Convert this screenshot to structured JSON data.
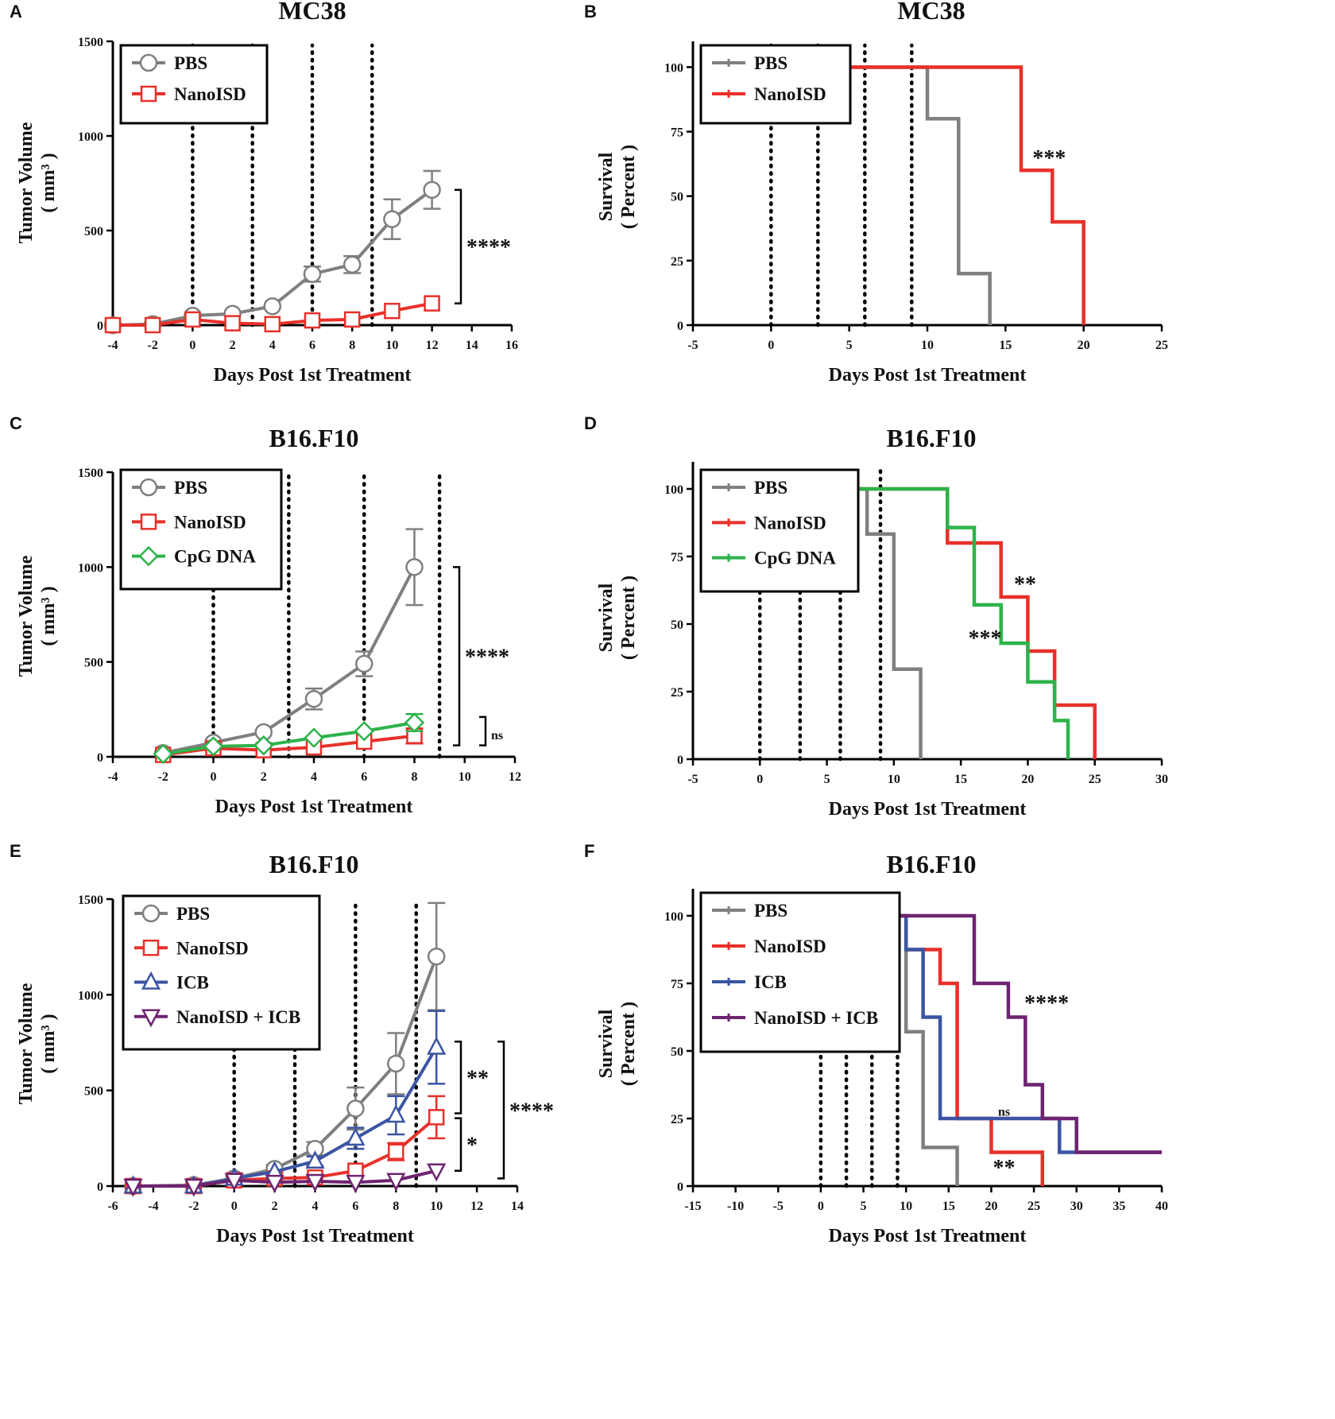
{
  "chart_data": [
    {
      "panel": "A",
      "type": "line",
      "title": "MC38",
      "xlabel": "Days Post 1st Treatment",
      "ylabel": "Tumor Volume",
      "ylabel_unit": "( mm³ )",
      "xlim": [
        -4,
        16
      ],
      "ylim": [
        0,
        1500
      ],
      "xticks": [
        -4,
        -2,
        0,
        2,
        4,
        6,
        8,
        10,
        12,
        14,
        16
      ],
      "yticks": [
        0,
        500,
        1000,
        1500
      ],
      "treatment_days": [
        0,
        3,
        6,
        9
      ],
      "series": [
        {
          "name": "PBS",
          "color": "#7f7f7f",
          "marker": "circle",
          "x": [
            -4,
            -2,
            0,
            2,
            4,
            6,
            8,
            10,
            12
          ],
          "y": [
            0,
            5,
            50,
            60,
            100,
            270,
            320,
            560,
            715
          ],
          "err": [
            0,
            0,
            0,
            0,
            0,
            40,
            45,
            105,
            100
          ]
        },
        {
          "name": "NanoISD",
          "color": "#e8302a",
          "marker": "square",
          "x": [
            -4,
            -2,
            0,
            2,
            4,
            6,
            8,
            10,
            12
          ],
          "y": [
            0,
            0,
            30,
            10,
            5,
            25,
            30,
            75,
            115
          ],
          "err": [
            0,
            0,
            0,
            0,
            0,
            0,
            0,
            0,
            0
          ]
        }
      ],
      "brackets": [
        {
          "from": 715,
          "to": 115,
          "label": "****"
        }
      ]
    },
    {
      "panel": "B",
      "type": "line",
      "step": true,
      "title": "MC38",
      "xlabel": "Days Post 1st Treatment",
      "ylabel": "Survival",
      "ylabel_unit": "( Percent )",
      "xlim": [
        -5,
        25
      ],
      "ylim": [
        0,
        110
      ],
      "xticks": [
        -5,
        0,
        5,
        10,
        15,
        20,
        25
      ],
      "yticks": [
        0,
        25,
        50,
        75,
        100
      ],
      "treatment_days": [
        0,
        3,
        6,
        9
      ],
      "series": [
        {
          "name": "PBS",
          "color": "#7f7f7f",
          "x": [
            5,
            10,
            12,
            14
          ],
          "y": [
            100,
            80,
            20,
            0
          ]
        },
        {
          "name": "NanoISD",
          "color": "#e8302a",
          "x": [
            5,
            16,
            18,
            20
          ],
          "y": [
            100,
            60,
            40,
            0
          ]
        }
      ],
      "annotations": [
        {
          "text": "***",
          "x": 17.8,
          "y": 65
        }
      ]
    },
    {
      "panel": "C",
      "type": "line",
      "title": "B16.F10",
      "xlabel": "Days Post 1st Treatment",
      "ylabel": "Tumor Volume",
      "ylabel_unit": "( mm³ )",
      "xlim": [
        -4,
        12
      ],
      "ylim": [
        0,
        1500
      ],
      "xticks": [
        -4,
        -2,
        0,
        2,
        4,
        6,
        8,
        10,
        12
      ],
      "yticks": [
        0,
        500,
        1000,
        1500
      ],
      "treatment_days": [
        0,
        3,
        6,
        9
      ],
      "series": [
        {
          "name": "PBS",
          "color": "#7f7f7f",
          "marker": "circle",
          "x": [
            -2,
            0,
            2,
            4,
            6,
            8
          ],
          "y": [
            20,
            75,
            130,
            305,
            490,
            1000
          ],
          "err": [
            0,
            0,
            0,
            55,
            65,
            200
          ]
        },
        {
          "name": "NanoISD",
          "color": "#e8302a",
          "marker": "square",
          "x": [
            -2,
            0,
            2,
            4,
            6,
            8
          ],
          "y": [
            10,
            45,
            35,
            50,
            80,
            110
          ],
          "err": [
            0,
            0,
            0,
            0,
            0,
            40
          ]
        },
        {
          "name": "CpG DNA",
          "color": "#2db34a",
          "marker": "diamond",
          "x": [
            -2,
            0,
            2,
            4,
            6,
            8
          ],
          "y": [
            15,
            55,
            60,
            100,
            135,
            180
          ],
          "err": [
            0,
            0,
            0,
            0,
            0,
            45
          ]
        }
      ],
      "brackets": [
        {
          "from": 1000,
          "to": 60,
          "label": "****"
        },
        {
          "from": 210,
          "to": 60,
          "label": "ns"
        }
      ]
    },
    {
      "panel": "D",
      "type": "line",
      "step": true,
      "title": "B16.F10",
      "xlabel": "Days Post 1st Treatment",
      "ylabel": "Survival",
      "ylabel_unit": "( Percent )",
      "xlim": [
        -5,
        30
      ],
      "ylim": [
        0,
        110
      ],
      "xticks": [
        -5,
        0,
        5,
        10,
        15,
        20,
        25,
        30
      ],
      "yticks": [
        0,
        25,
        50,
        75,
        100
      ],
      "treatment_days": [
        0,
        3,
        6,
        9
      ],
      "series": [
        {
          "name": "PBS",
          "color": "#7f7f7f",
          "x": [
            4,
            8,
            10,
            12
          ],
          "y": [
            100,
            83.3,
            33.3,
            0
          ]
        },
        {
          "name": "NanoISD",
          "color": "#e8302a",
          "x": [
            4,
            14,
            18,
            20,
            22,
            25
          ],
          "y": [
            100,
            80,
            60,
            40,
            20,
            0
          ]
        },
        {
          "name": "CpG DNA",
          "color": "#2db34a",
          "x": [
            4,
            14,
            16,
            18,
            20,
            22,
            23
          ],
          "y": [
            100,
            85.7,
            57.1,
            42.9,
            28.6,
            14.3,
            0
          ]
        }
      ],
      "annotations": [
        {
          "text": "**",
          "x": 19.8,
          "y": 65
        },
        {
          "text": "***",
          "x": 16.8,
          "y": 45
        }
      ]
    },
    {
      "panel": "E",
      "type": "line",
      "title": "B16.F10",
      "xlabel": "Days Post 1st Treatment",
      "ylabel": "Tumor Volume",
      "ylabel_unit": "( mm³ )",
      "xlim": [
        -6,
        14
      ],
      "ylim": [
        0,
        1500
      ],
      "xticks": [
        -6,
        -4,
        -2,
        0,
        2,
        4,
        6,
        8,
        10,
        12,
        14
      ],
      "yticks": [
        0,
        500,
        1000,
        1500
      ],
      "treatment_days": [
        0,
        3,
        6,
        9
      ],
      "series": [
        {
          "name": "PBS",
          "color": "#7f7f7f",
          "marker": "circle",
          "x": [
            -5,
            -2,
            0,
            2,
            4,
            6,
            8,
            10
          ],
          "y": [
            0,
            5,
            40,
            90,
            195,
            405,
            640,
            1200
          ],
          "err": [
            0,
            0,
            0,
            20,
            35,
            110,
            160,
            280
          ]
        },
        {
          "name": "NanoISD",
          "color": "#e8302a",
          "marker": "square",
          "x": [
            -5,
            -2,
            0,
            2,
            4,
            6,
            8,
            10
          ],
          "y": [
            0,
            0,
            30,
            40,
            45,
            80,
            180,
            360
          ],
          "err": [
            0,
            0,
            0,
            0,
            0,
            0,
            45,
            110
          ]
        },
        {
          "name": "ICB",
          "color": "#3b55a3",
          "marker": "triangle",
          "x": [
            -5,
            -2,
            0,
            2,
            4,
            6,
            8,
            10
          ],
          "y": [
            0,
            0,
            40,
            75,
            130,
            250,
            370,
            725
          ],
          "err": [
            0,
            0,
            0,
            0,
            25,
            55,
            100,
            190
          ]
        },
        {
          "name": "NanoISD + ICB",
          "color": "#6e2470",
          "marker": "triangle-down",
          "x": [
            -5,
            -2,
            0,
            2,
            4,
            6,
            8,
            10
          ],
          "y": [
            0,
            0,
            30,
            20,
            25,
            20,
            30,
            80
          ],
          "err": [
            0,
            0,
            0,
            0,
            0,
            0,
            0,
            0
          ]
        }
      ],
      "brackets": [
        {
          "from": 755,
          "to": 380,
          "label": "**"
        },
        {
          "from": 355,
          "to": 80,
          "label": "*"
        },
        {
          "from": 755,
          "to": 40,
          "label": "****"
        }
      ]
    },
    {
      "panel": "F",
      "type": "line",
      "step": true,
      "title": "B16.F10",
      "xlabel": "Days Post 1st Treatment",
      "ylabel": "Survival",
      "ylabel_unit": "( Percent )",
      "xlim": [
        -15,
        40
      ],
      "ylim": [
        0,
        110
      ],
      "xticks": [
        -15,
        -10,
        -5,
        0,
        5,
        10,
        15,
        20,
        25,
        30,
        35,
        40
      ],
      "yticks": [
        0,
        25,
        50,
        75,
        100
      ],
      "treatment_days": [
        0,
        3,
        6,
        9
      ],
      "series": [
        {
          "name": "PBS",
          "color": "#7f7f7f",
          "x": [
            5,
            10,
            12,
            16
          ],
          "y": [
            100,
            57.1,
            14.3,
            0
          ]
        },
        {
          "name": "NanoISD",
          "color": "#e8302a",
          "x": [
            5,
            10,
            14,
            16,
            20,
            26
          ],
          "y": [
            100,
            87.5,
            75,
            25,
            12.5,
            0
          ]
        },
        {
          "name": "ICB",
          "color": "#3b55a3",
          "x": [
            5,
            10,
            12,
            14,
            28,
            40
          ],
          "y": [
            100,
            87.5,
            62.5,
            25,
            12.5,
            12.5
          ]
        },
        {
          "name": "NanoISD + ICB",
          "color": "#6e2470",
          "x": [
            5,
            18,
            22,
            24,
            26,
            30,
            40
          ],
          "y": [
            100,
            75,
            62.5,
            37.5,
            25,
            12.5,
            12.5
          ]
        }
      ],
      "annotations": [
        {
          "text": "****",
          "x": 26.5,
          "y": 68
        },
        {
          "text": "ns",
          "x": 21.5,
          "y": 29
        },
        {
          "text": "**",
          "x": 21.5,
          "y": 7
        }
      ]
    }
  ]
}
